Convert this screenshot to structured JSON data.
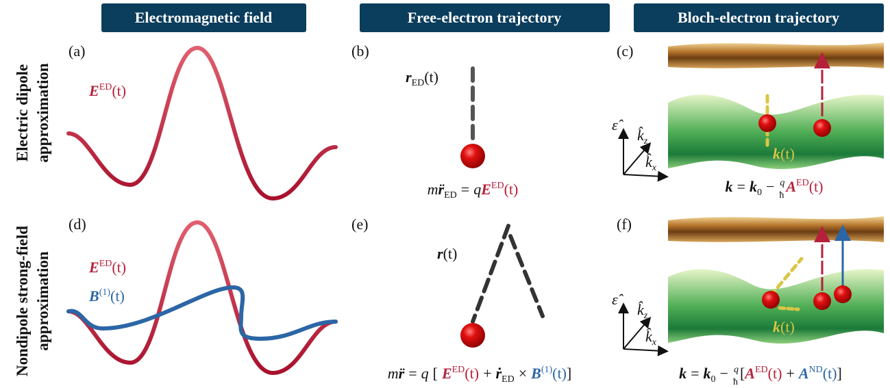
{
  "headers": [
    "Electromagnetic field",
    "Free-electron trajectory",
    "Bloch-electron trajectory"
  ],
  "row_labels": [
    [
      "Electric dipole",
      "approximation"
    ],
    [
      "Nondipole strong-field",
      "approximation"
    ]
  ],
  "panels": [
    "(a)",
    "(b)",
    "(c)",
    "(d)",
    "(e)",
    "(f)"
  ],
  "math": {
    "a_label": [
      "E",
      "ED",
      "(t)"
    ],
    "b_label": [
      "r",
      "ED",
      "(t)"
    ],
    "b_eq": [
      "m",
      "r̈",
      "ED",
      "=",
      "q",
      "E",
      "ED",
      "(t)"
    ],
    "c_axes": [
      "ε̂",
      "k̂",
      "z",
      "k̂",
      "x"
    ],
    "c_k": [
      "k",
      "(t)"
    ],
    "c_eq": [
      "k",
      "=",
      "k",
      "0",
      "−",
      "q",
      "ħ",
      "A",
      "ED",
      "(t)"
    ],
    "d_E": [
      "E",
      "ED",
      "(t)"
    ],
    "d_B": [
      "B",
      "(1)",
      "(t)"
    ],
    "e_label": [
      "r",
      "(t)"
    ],
    "e_eq": [
      "m",
      "r̈",
      "=",
      "q",
      "[",
      "E",
      "ED",
      "(t)",
      "+",
      "ṙ",
      "ED",
      "×",
      "B",
      "(1)",
      "(t)",
      "]"
    ],
    "f_axes": [
      "ε̂",
      "k̂",
      "z",
      "k̂",
      "x"
    ],
    "f_k": [
      "k",
      "(t)"
    ],
    "f_eq": [
      "k",
      "=",
      "k",
      "0",
      "−",
      "q",
      "ħ",
      "[",
      "A",
      "ED",
      "(t)",
      "+",
      "A",
      "ND",
      "(t)",
      "]"
    ]
  }
}
